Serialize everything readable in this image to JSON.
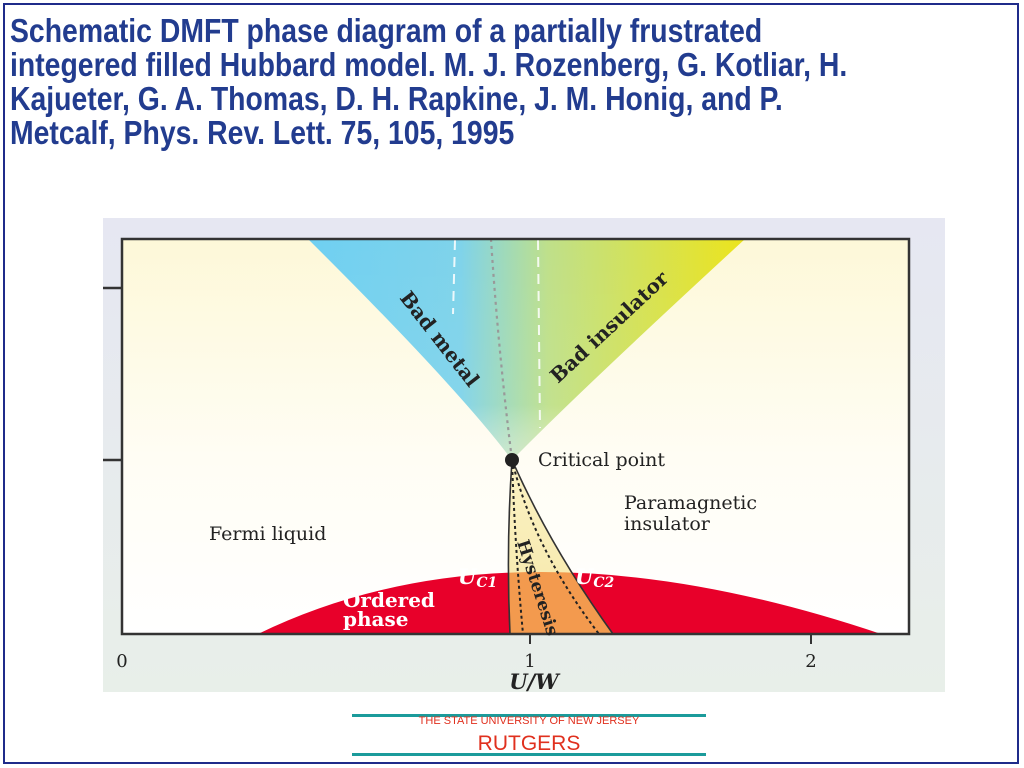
{
  "slide": {
    "title": "Schematic DMFT phase diagram of a partially frustrated integered filled Hubbard model. M. J. Rozenberg, G. Kotliar, H. Kajueter, G. A. Thomas, D. H. Rapkine, J. M. Honig, and P. Metcalf, Phys. Rev. Lett. 75, 105, 1995"
  },
  "diagram": {
    "x_axis_label": "U/W",
    "x_ticks": [
      "0",
      "1",
      "2"
    ],
    "labels": {
      "bad_metal": "Bad metal",
      "bad_insulator": "Bad insulator",
      "critical_point": "Critical point",
      "paramagnetic_line1": "Paramagnetic",
      "paramagnetic_line2": "insulator",
      "fermi_liquid": "Fermi liquid",
      "ordered_line1": "Ordered",
      "ordered_line2": "phase",
      "hysteresis": "Hysteresis",
      "uc1_main": "U",
      "uc1_sub": "C1",
      "uc2_main": "U",
      "uc2_sub": "C2"
    },
    "colors": {
      "bad_metal": "#6fd0f2",
      "bad_insulator": "#e9e41e",
      "ordered_phase": "#e8002a",
      "hysteresis": "#f39a4e",
      "background_top": "#fdf9dc",
      "background_bottom": "#ffffff"
    }
  },
  "footer": {
    "tagline": "THE STATE UNIVERSITY OF NEW JERSEY",
    "wordmark": "RUTGERS"
  }
}
